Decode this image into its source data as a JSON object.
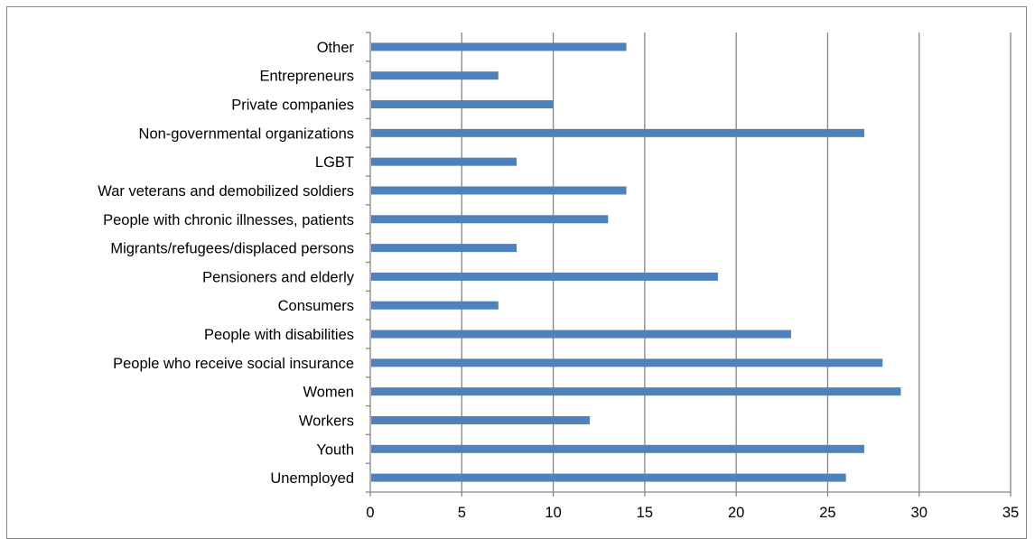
{
  "chart_data": {
    "type": "bar",
    "orientation": "horizontal",
    "categories": [
      "Unemployed",
      "Youth",
      "Workers",
      "Women",
      "People who receive social insurance",
      "People with disabilities",
      "Consumers",
      "Pensioners and elderly",
      "Migrants/refugees/displaced persons",
      "People with chronic illnesses, patients",
      "War veterans and demobilized soldiers",
      "LGBT",
      "Non-governmental organizations",
      "Private companies",
      "Entrepreneurs",
      "Other"
    ],
    "values": [
      26,
      27,
      12,
      29,
      28,
      23,
      7,
      19,
      8,
      13,
      14,
      8,
      27,
      10,
      7,
      14
    ],
    "xlim": [
      0,
      35
    ],
    "xticks": [
      "0",
      "5",
      "10",
      "15",
      "20",
      "25",
      "30",
      "35"
    ],
    "title": "",
    "xlabel": "",
    "ylabel": "",
    "grid": "vertical",
    "legend": "none",
    "bar_color": "#4F81BD",
    "grid_color": "#868686"
  }
}
